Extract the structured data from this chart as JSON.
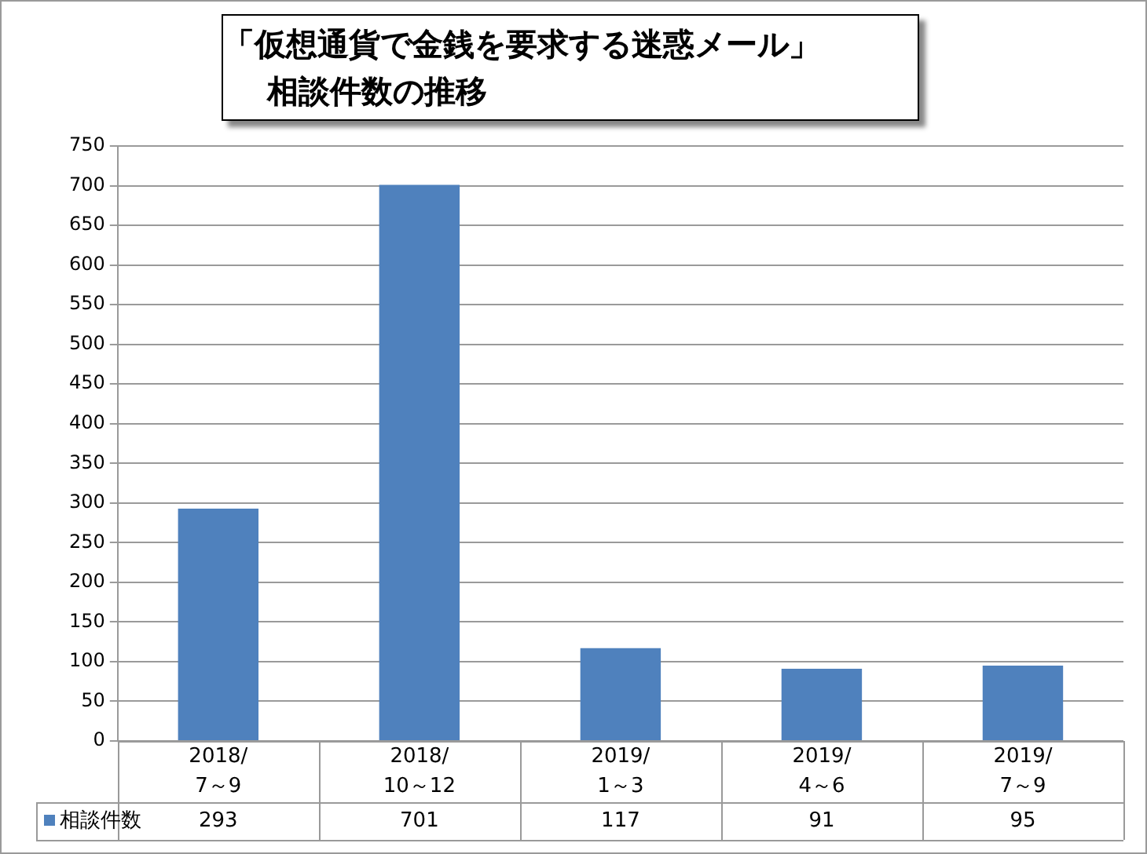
{
  "chart_data": {
    "type": "bar",
    "title": "「仮想通貨で金銭を要求する迷惑メール」",
    "subtitle": "相談件数の推移",
    "categories": [
      "2018/\n7～9",
      "2018/\n10～12",
      "2019/\n1～3",
      "2019/\n4～6",
      "2019/\n7～9"
    ],
    "series": [
      {
        "name": "相談件数",
        "color": "#4f81bd",
        "values": [
          293,
          701,
          117,
          91,
          95
        ]
      }
    ],
    "ylim": [
      0,
      750
    ],
    "yticks": [
      0,
      50,
      100,
      150,
      200,
      250,
      300,
      350,
      400,
      450,
      500,
      550,
      600,
      650,
      700,
      750
    ],
    "grid": "y",
    "legend": "bottom left",
    "data_labels": true
  }
}
